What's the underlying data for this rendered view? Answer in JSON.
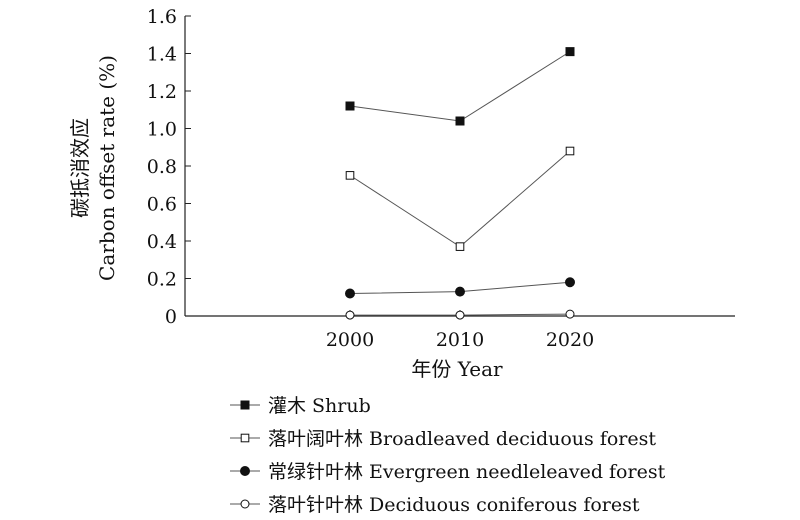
{
  "chart_data": {
    "type": "line",
    "x": [
      2000,
      2010,
      2020
    ],
    "xlim": [
      1985,
      2035
    ],
    "ylim": [
      0,
      1.6
    ],
    "y_ticks": [
      0,
      0.2,
      0.4,
      0.6,
      0.8,
      1.0,
      1.2,
      1.4,
      1.6
    ],
    "y_tick_labels": [
      "0",
      "0.2",
      "0.4",
      "0.6",
      "0.8",
      "1.0",
      "1.2",
      "1.4",
      "1.6"
    ],
    "x_tick_labels": [
      "2000",
      "2010",
      "2020"
    ],
    "xlabel": "年份 Year",
    "ylabel_cn": "碳抵消效应",
    "ylabel_en": "Carbon offset rate (%)",
    "grid": false,
    "legend_position": "bottom",
    "series": [
      {
        "name": "灌木 Shrub",
        "marker": "square-filled",
        "values": [
          1.12,
          1.04,
          1.41
        ]
      },
      {
        "name": "落叶阔叶林 Broadleaved deciduous forest",
        "marker": "square-open",
        "values": [
          0.75,
          0.37,
          0.88
        ]
      },
      {
        "name": "常绿针叶林 Evergreen needleleaved forest",
        "marker": "circle-filled",
        "values": [
          0.12,
          0.13,
          0.18
        ]
      },
      {
        "name": "落叶针叶林 Deciduous coniferous forest",
        "marker": "circle-open",
        "values": [
          0.005,
          0.005,
          0.01
        ]
      }
    ]
  }
}
